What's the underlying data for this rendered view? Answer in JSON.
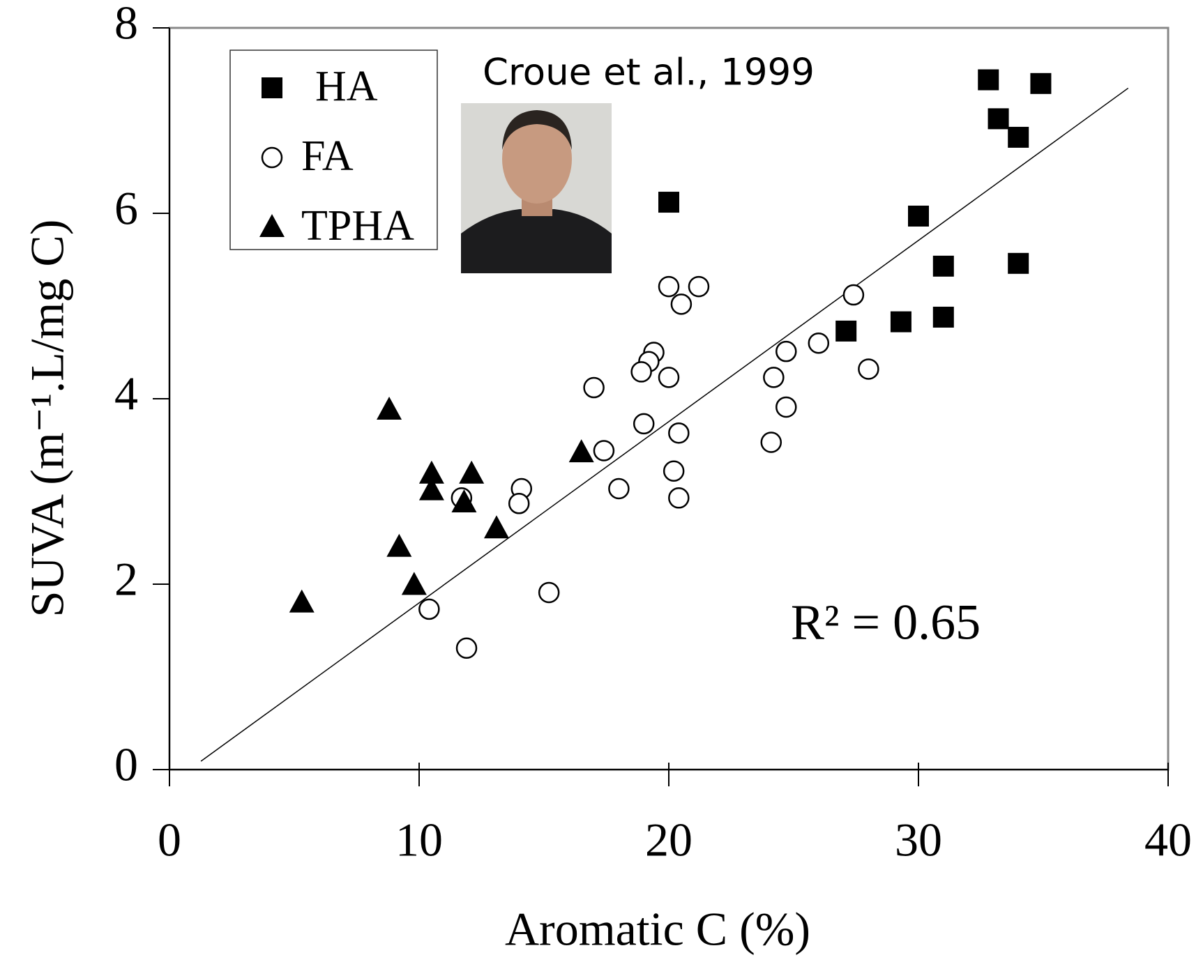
{
  "chart_data": {
    "type": "scatter",
    "xlabel": "Aromatic C (%)",
    "ylabel": "SUVA (m⁻¹.L/mg C)",
    "xlim": [
      0,
      40
    ],
    "xticks": [
      0,
      10,
      20,
      30,
      40
    ],
    "ylim": [
      0,
      8
    ],
    "yticks": [
      0,
      2,
      4,
      6,
      8
    ],
    "annotations": [
      "Croue et al., 1999",
      "R² = 0.65"
    ],
    "trendline": {
      "x": [
        1.26,
        38.4
      ],
      "y": [
        0.09,
        7.35
      ],
      "color": "#000000"
    },
    "series": [
      {
        "name": "HA",
        "marker": "square",
        "color": "#000000",
        "x": [
          32.8,
          34.9,
          33.2,
          34.0,
          20.0,
          30.0,
          31.0,
          34.0,
          27.1,
          29.3,
          31.0
        ],
        "y": [
          7.44,
          7.4,
          7.02,
          6.82,
          6.12,
          5.97,
          5.43,
          5.46,
          4.73,
          4.83,
          4.88
        ]
      },
      {
        "name": "FA",
        "marker": "circle",
        "color": "#000000",
        "x": [
          20.0,
          21.2,
          20.5,
          27.4,
          19.4,
          19.2,
          18.9,
          20.0,
          26.0,
          24.7,
          24.2,
          28.0,
          24.7,
          17.0,
          19.0,
          20.4,
          24.1,
          17.4,
          20.2,
          14.1,
          14.0,
          18.0,
          20.4,
          11.7,
          15.2,
          10.4,
          11.9
        ],
        "y": [
          5.21,
          5.21,
          5.02,
          5.12,
          4.5,
          4.4,
          4.29,
          4.23,
          4.6,
          4.51,
          4.23,
          4.32,
          3.91,
          4.12,
          3.73,
          3.63,
          3.53,
          3.44,
          3.22,
          3.03,
          2.87,
          3.03,
          2.93,
          2.93,
          1.91,
          1.73,
          1.31
        ]
      },
      {
        "name": "TPHA",
        "marker": "triangle",
        "color": "#000000",
        "x": [
          8.8,
          10.5,
          12.1,
          10.5,
          11.8,
          16.5,
          13.1,
          9.2,
          9.8,
          5.3
        ],
        "y": [
          3.88,
          3.19,
          3.19,
          3.01,
          2.88,
          3.42,
          2.6,
          2.4,
          1.99,
          1.8
        ]
      }
    ]
  }
}
